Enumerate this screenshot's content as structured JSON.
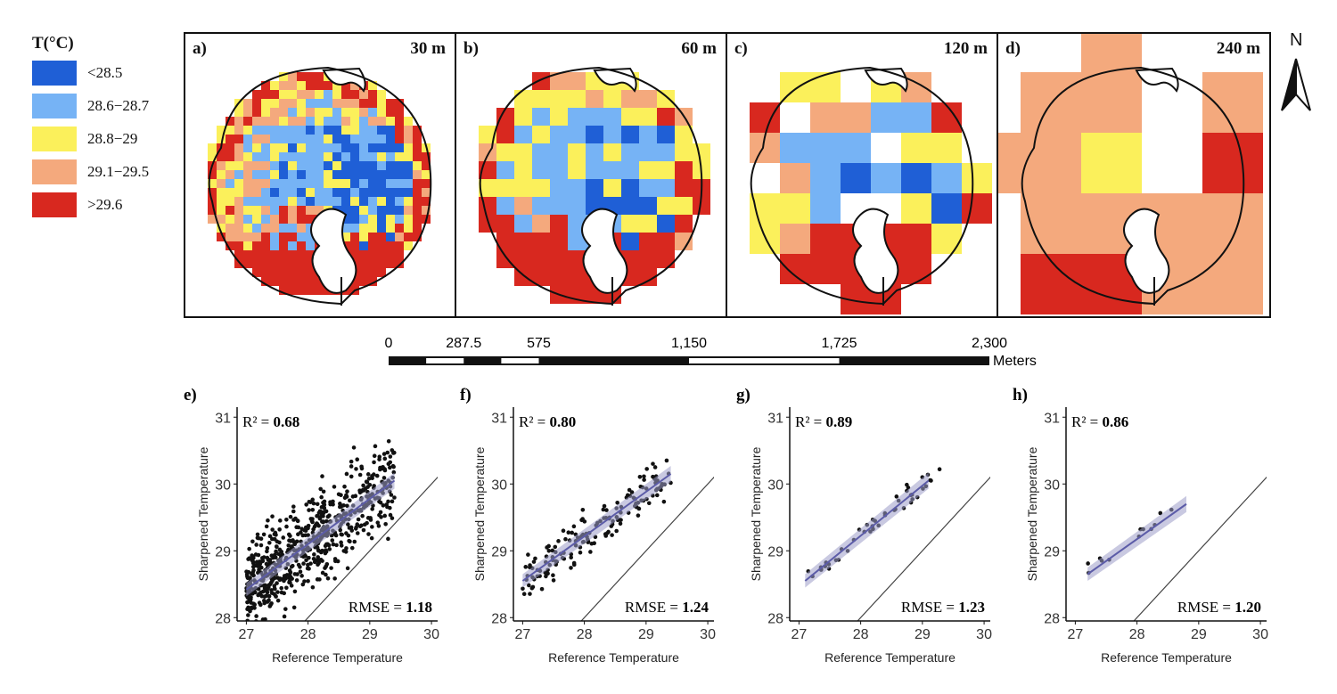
{
  "legend": {
    "title": "T(°C)",
    "items": [
      {
        "label": "<28.5",
        "color": "#1F5FD6"
      },
      {
        "label": "28.6−28.7",
        "color": "#76B3F5"
      },
      {
        "label": "28.8−29",
        "color": "#FBF05B"
      },
      {
        "label": "29.1−29.5",
        "color": "#F4A97D"
      },
      {
        "label": ">29.6",
        "color": "#D8281F"
      }
    ]
  },
  "map_panels": [
    {
      "letter": "a)",
      "resolution": "30 m"
    },
    {
      "letter": "b)",
      "resolution": "60 m"
    },
    {
      "letter": "c)",
      "resolution": "120 m"
    },
    {
      "letter": "d)",
      "resolution": "240 m"
    }
  ],
  "north_arrow": {
    "label": "N"
  },
  "scale_bar": {
    "ticks": [
      "0",
      "287.5",
      "575",
      "1,150",
      "1,725",
      "2,300"
    ],
    "tick_values": [
      0,
      287.5,
      575,
      1150,
      1725,
      2300
    ],
    "unit": "Meters"
  },
  "chart_data": [
    {
      "type": "scatter",
      "panel": "e)",
      "r2_label": "R² = ",
      "r2": "0.68",
      "rmse_label": "RMSE = ",
      "rmse": "1.18",
      "xlabel": "Reference Temperature",
      "ylabel": "Sharpened Temperature",
      "xlim": [
        26.85,
        30.1
      ],
      "ylim": [
        27.95,
        31.15
      ],
      "xticks": [
        27,
        28,
        29,
        30
      ],
      "yticks": [
        28,
        29,
        30,
        31
      ],
      "fit": {
        "x0": 27,
        "y0": 28.42,
        "x1": 29.4,
        "y1": 30.05
      },
      "n_points": 650,
      "x_range": [
        27.0,
        29.4
      ]
    },
    {
      "type": "scatter",
      "panel": "f)",
      "r2_label": "R² = ",
      "r2": "0.80",
      "rmse_label": "RMSE = ",
      "rmse": "1.24",
      "xlabel": "Reference Temperature",
      "ylabel": "Sharpened Temperature",
      "xlim": [
        26.85,
        30.1
      ],
      "ylim": [
        27.95,
        31.15
      ],
      "xticks": [
        27,
        28,
        29,
        30
      ],
      "yticks": [
        28,
        29,
        30,
        31
      ],
      "fit": {
        "x0": 27,
        "y0": 28.55,
        "x1": 29.4,
        "y1": 30.15
      },
      "n_points": 160,
      "x_range": [
        27.0,
        29.4
      ]
    },
    {
      "type": "scatter",
      "panel": "g)",
      "r2_label": "R² = ",
      "r2": "0.89",
      "rmse_label": "RMSE = ",
      "rmse": "1.23",
      "xlabel": "Reference Temperature",
      "ylabel": "Sharpened Temperature",
      "xlim": [
        26.85,
        30.1
      ],
      "ylim": [
        27.95,
        31.15
      ],
      "xticks": [
        27,
        28,
        29,
        30
      ],
      "yticks": [
        28,
        29,
        30,
        31
      ],
      "fit": {
        "x0": 27.1,
        "y0": 28.55,
        "x1": 29.1,
        "y1": 30.05
      },
      "n_points": 45,
      "x_range": [
        27.1,
        29.3
      ]
    },
    {
      "type": "scatter",
      "panel": "h)",
      "r2_label": "R² = ",
      "r2": "0.86",
      "rmse_label": "RMSE = ",
      "rmse": "1.20",
      "xlabel": "Reference Temperature",
      "ylabel": "Sharpened Temperature",
      "xlim": [
        26.85,
        30.1
      ],
      "ylim": [
        27.95,
        31.15
      ],
      "xticks": [
        27,
        28,
        29,
        30
      ],
      "yticks": [
        28,
        29,
        30,
        31
      ],
      "fit": {
        "x0": 27.2,
        "y0": 28.65,
        "x1": 28.8,
        "y1": 29.7
      },
      "n_points": 12,
      "x_range": [
        27.2,
        28.8
      ]
    }
  ]
}
